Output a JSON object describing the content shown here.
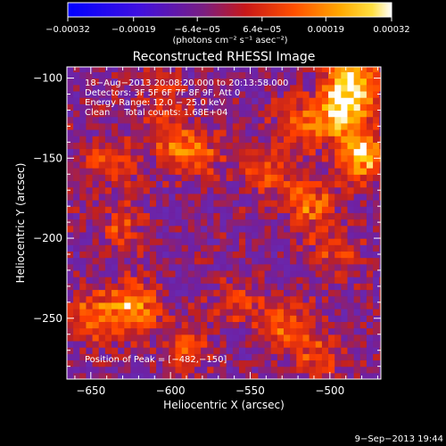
{
  "chart_data": {
    "type": "heatmap",
    "title": "Reconstructed RHESSI Image",
    "xlabel": "Heliocentric X (arcsec)",
    "ylabel": "Heliocentric Y (arcsec)",
    "xlim": [
      -665,
      -468
    ],
    "ylim": [
      -288,
      -93
    ],
    "x_ticks": [
      -650,
      -600,
      -550,
      -500
    ],
    "x_tick_labels": [
      "−650",
      "−600",
      "−550",
      "−500"
    ],
    "y_ticks": [
      -250,
      -200,
      -150,
      -100
    ],
    "y_tick_labels": [
      "−250",
      "−200",
      "−150",
      "−100"
    ],
    "colorbar": {
      "min": -0.00032,
      "max": 0.00032,
      "ticks": [
        -0.00032,
        -0.00019,
        -6.4e-05,
        6.4e-05,
        0.00019,
        0.00032
      ],
      "tick_labels": [
        "−0.00032",
        "−0.00019",
        "−6.4e−05",
        "6.4e−05",
        "0.00019",
        "0.00032"
      ],
      "units": "(photons cm⁻² s⁻¹ asec⁻²)"
    },
    "annotations": [
      "18−Aug−2013 20:08:20.000 to 20:13:58.000",
      "Detectors: 3F 5F 6F 7F 8F 9F, Att 0",
      "Energy Range: 12.0 − 25.0 keV",
      "Clean     Total counts: 1.68E+04"
    ],
    "peak_label": "Position of Peak = [−482,−150]",
    "peak": [
      -482,
      -150
    ],
    "footer": "9−Sep−2013 19:44",
    "bright_sources": [
      {
        "x": -487,
        "y": -105,
        "value": 0.00032
      },
      {
        "x": -482,
        "y": -150,
        "value": 0.00032
      },
      {
        "x": -495,
        "y": -123,
        "value": 0.00026
      },
      {
        "x": -515,
        "y": -180,
        "value": 0.0002
      },
      {
        "x": -625,
        "y": -245,
        "value": 0.00025
      },
      {
        "x": -650,
        "y": -250,
        "value": 0.00021
      },
      {
        "x": -600,
        "y": -140,
        "value": 0.00015
      },
      {
        "x": -585,
        "y": -152,
        "value": 0.00016
      },
      {
        "x": -640,
        "y": -155,
        "value": 0.00015
      },
      {
        "x": -632,
        "y": -195,
        "value": 0.00013
      },
      {
        "x": -590,
        "y": -270,
        "value": 0.00015
      },
      {
        "x": -530,
        "y": -255,
        "value": 0.00019
      },
      {
        "x": -510,
        "y": -275,
        "value": 0.00016
      },
      {
        "x": -560,
        "y": -240,
        "value": 0.00012
      },
      {
        "x": -608,
        "y": -112,
        "value": 0.00011
      },
      {
        "x": -520,
        "y": -130,
        "value": 0.00018
      },
      {
        "x": -540,
        "y": -160,
        "value": 0.00015
      },
      {
        "x": -500,
        "y": -210,
        "value": 0.00014
      }
    ],
    "colors": [
      "#0000ff",
      "#6030c0",
      "#7020a0",
      "#c02020",
      "#ff4000",
      "#ff9000",
      "#ffd000",
      "#ffffff"
    ]
  }
}
